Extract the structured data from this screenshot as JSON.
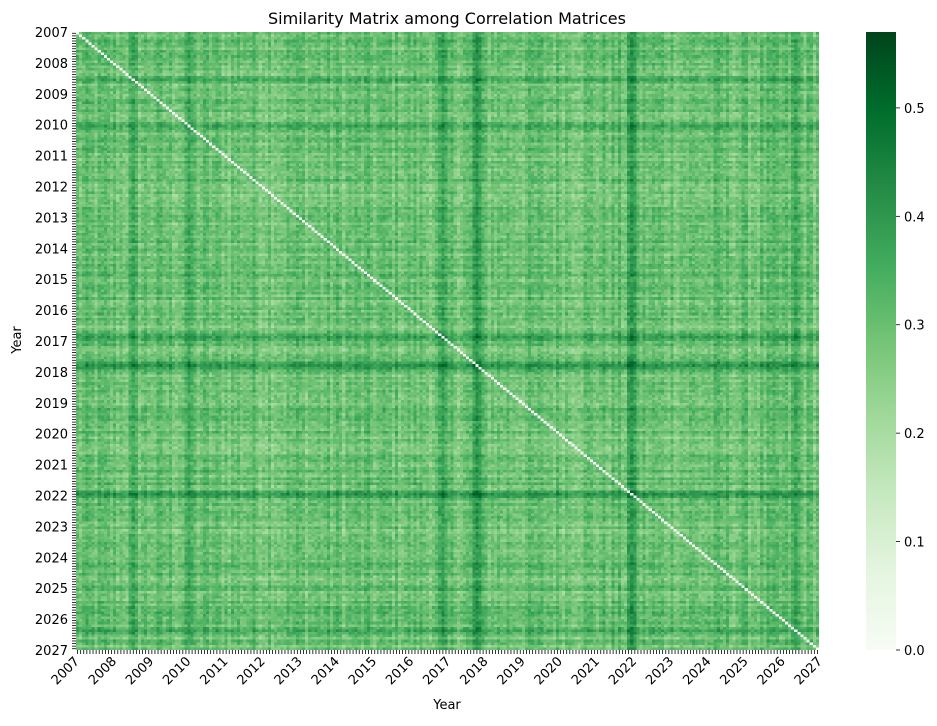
{
  "chart_data": {
    "type": "heatmap",
    "title": "Similarity Matrix among Correlation Matrices",
    "xlabel": "Year",
    "ylabel": "Year",
    "x_tick_labels": [
      "2007",
      "2008",
      "2009",
      "2010",
      "2011",
      "2012",
      "2013",
      "2014",
      "2015",
      "2016",
      "2017",
      "2018",
      "2019",
      "2020",
      "2021",
      "2022",
      "2023",
      "2024",
      "2025",
      "2026",
      "2027"
    ],
    "y_tick_labels": [
      "2007",
      "2008",
      "2009",
      "2010",
      "2011",
      "2012",
      "2013",
      "2014",
      "2015",
      "2016",
      "2017",
      "2018",
      "2019",
      "2020",
      "2021",
      "2022",
      "2023",
      "2024",
      "2025",
      "2026",
      "2027"
    ],
    "matrix_size": 240,
    "diagonal_value": 0.0,
    "value_range": [
      0,
      0.57
    ],
    "typical_value_range": [
      0.2,
      0.35
    ],
    "strong_years": [
      {
        "year": 2017.8,
        "value": 0.5
      },
      {
        "year": 2022.0,
        "value": 0.5
      },
      {
        "year": 2016.9,
        "value": 0.45
      },
      {
        "year": 2010.0,
        "value": 0.42
      },
      {
        "year": 2008.5,
        "value": 0.42
      },
      {
        "year": 2026.4,
        "value": 0.42
      }
    ],
    "colorscale": {
      "name": "Greens",
      "colors": [
        "#f7fcf5",
        "#e5f5e0",
        "#c7e9c0",
        "#a1d99b",
        "#74c476",
        "#41ab5d",
        "#238b45",
        "#006d2c",
        "#00441b"
      ]
    },
    "colorbar": {
      "ticks": [
        "0.0",
        "0.1",
        "0.2",
        "0.3",
        "0.4",
        "0.5"
      ],
      "tick_values": [
        0,
        0.1,
        0.2,
        0.3,
        0.4,
        0.5
      ]
    },
    "grid": false
  }
}
